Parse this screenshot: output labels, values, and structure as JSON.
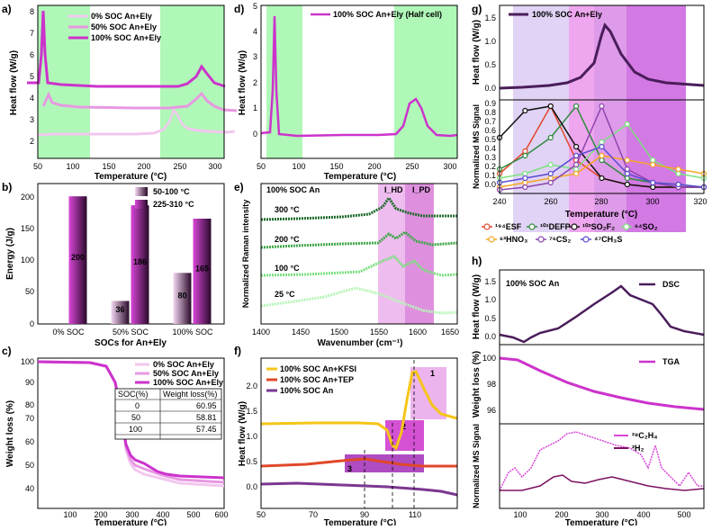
{
  "colors": {
    "green": "#6cf27a",
    "pink100": "#cc33cc",
    "pink50": "#e799e2",
    "pink0": "#f2c7ef",
    "dkgreen": "#1e6b2a",
    "orange": "#f5a623",
    "red": "#e0482a",
    "black": "#111111",
    "purple": "#6d2a8a",
    "magenta": "#d846d8"
  },
  "chart_data": [
    {
      "id": "a",
      "panel_label": "a)",
      "type": "line",
      "xlabel": "Temperature (°C)",
      "ylabel": "Heat flow (W/g)",
      "xlim": [
        50,
        310
      ],
      "ylim": [
        1.5,
        8.5
      ],
      "xticks": [
        "50",
        "100",
        "150",
        "200",
        "250",
        "300"
      ],
      "yticks": [
        "2",
        "3",
        "4",
        "5",
        "6",
        "7",
        "8"
      ],
      "shaded": [
        [
          50,
          100
        ],
        [
          225,
          310
        ]
      ],
      "series": [
        {
          "name": "0% SOC An+Ely"
        },
        {
          "name": "50% SOC An+Ely"
        },
        {
          "name": "100% SOC An+Ely"
        }
      ]
    },
    {
      "id": "b",
      "panel_label": "b)",
      "type": "bar",
      "xlabel": "SOCs for An+Ely",
      "ylabel": "Energy (J/g)",
      "categories": [
        "0% SOC",
        "50% SOC",
        "100% SOC"
      ],
      "ylim": [
        0,
        220
      ],
      "yticks": [
        "0",
        "50",
        "100",
        "150",
        "200"
      ],
      "series": [
        {
          "name": "50-100 °C",
          "values": [
            0,
            36,
            80
          ]
        },
        {
          "name": "225-310 °C",
          "values": [
            200,
            186,
            165
          ]
        }
      ],
      "value_labels": [
        "200",
        "36",
        "186",
        "80",
        "165"
      ]
    },
    {
      "id": "c",
      "panel_label": "c)",
      "type": "line",
      "xlabel": "Temperature (°C)",
      "ylabel": "Weight loss (%)",
      "xlim": [
        30,
        600
      ],
      "ylim": [
        36,
        101
      ],
      "xticks": [
        "100",
        "200",
        "300",
        "400",
        "500",
        "600"
      ],
      "yticks": [
        "40",
        "50",
        "60",
        "70",
        "80",
        "90",
        "100"
      ],
      "series": [
        {
          "name": "0% SOC An+Ely"
        },
        {
          "name": "50% SOC An+Ely"
        },
        {
          "name": "100% SOC An+Ely"
        }
      ],
      "table": {
        "headers": [
          "SOC(%)",
          "Weight loss(%)"
        ],
        "rows": [
          [
            "0",
            "60.95"
          ],
          [
            "50",
            "58.81"
          ],
          [
            "100",
            "57.45"
          ]
        ]
      }
    },
    {
      "id": "d",
      "panel_label": "d)",
      "type": "line",
      "xlabel": "Temperature (°C)",
      "ylabel": "Heat flow (W/g)",
      "xlim": [
        50,
        310
      ],
      "ylim": [
        -0.8,
        5.2
      ],
      "xticks": [
        "50",
        "100",
        "150",
        "200",
        "250",
        "300"
      ],
      "yticks": [
        "0",
        "1",
        "2",
        "3",
        "4",
        "5"
      ],
      "shaded": [
        [
          60,
          100
        ],
        [
          230,
          310
        ]
      ],
      "series": [
        {
          "name": "100% SOC An+Ely (Half cell)"
        }
      ]
    },
    {
      "id": "e",
      "panel_label": "e)",
      "type": "line",
      "title": "100% SOC An",
      "xlabel": "Wavenumber (cm⁻¹)",
      "ylabel": "Normalized Raman intensity",
      "xlim": [
        1400,
        1650
      ],
      "xticks": [
        "1400",
        "1450",
        "1500",
        "1550",
        "1600",
        "1650"
      ],
      "bands": [
        {
          "label": "I_HD",
          "range": [
            1555,
            1585
          ]
        },
        {
          "label": "I_PD",
          "range": [
            1585,
            1618
          ]
        }
      ],
      "series": [
        {
          "name": "300 °C"
        },
        {
          "name": "200 °C"
        },
        {
          "name": "100 °C"
        },
        {
          "name": "25 °C"
        }
      ]
    },
    {
      "id": "f",
      "panel_label": "f)",
      "type": "line",
      "xlabel": "Temperature (°C)",
      "ylabel": "Heat flow (W/g)",
      "xlim": [
        50,
        125
      ],
      "ylim": [
        -0.3,
        2.6
      ],
      "xticks": [
        "50",
        "70",
        "90",
        "110"
      ],
      "yticks": [
        "0.0",
        "0.5",
        "1.0",
        "1.5",
        "2.0"
      ],
      "series": [
        {
          "name": "100% SOC An+KFSI"
        },
        {
          "name": "100% SOC An+TEP"
        },
        {
          "name": "100% SOC An"
        }
      ],
      "annotations": [
        "1",
        "2",
        "3"
      ]
    },
    {
      "id": "g",
      "panel_label": "g)",
      "type": "line",
      "xlabel": "Temperature (°C)",
      "ylabel_top": "Heat flow (W/g)",
      "ylabel_bottom": "Normalized MS Signal",
      "xlim": [
        240,
        320
      ],
      "xticks": [
        "240",
        "260",
        "280",
        "300",
        "320"
      ],
      "yticks_top": [
        "0.0",
        "0.5",
        "1.0",
        "1.5"
      ],
      "yticks_bottom": [
        "0.0",
        "0.1",
        "0.2",
        "0.3",
        "0.4",
        "0.5",
        "0.6",
        "0.7",
        "0.8",
        "0.9"
      ],
      "series": [
        {
          "name": "100% SOC An+Ely"
        }
      ],
      "ms_legend": [
        "¹⁹⁴ESF",
        "¹⁰¹DEFP",
        "¹⁰²SO₂F₂",
        "⁶⁴SO₂",
        "⁶³HNO₃",
        "⁷⁶CS₂",
        "⁴⁷CH₃S"
      ],
      "ms_series": [
        {
          "name": "194ESF",
          "x": [
            240,
            250,
            260,
            270,
            280,
            290,
            300,
            310,
            320
          ],
          "y": [
            0.2,
            0.45,
            0.95,
            0.35,
            0.15,
            0.08,
            0.05,
            0.05,
            0.05
          ]
        },
        {
          "name": "101DEFP",
          "x": [
            240,
            250,
            260,
            270,
            280,
            290,
            300,
            310,
            320
          ],
          "y": [
            0.25,
            0.4,
            0.6,
            0.95,
            0.35,
            0.15,
            0.1,
            0.08,
            0.05
          ]
        },
        {
          "name": "102SO2F2",
          "x": [
            240,
            250,
            260,
            270,
            280,
            290,
            300,
            310,
            320
          ],
          "y": [
            0.6,
            0.9,
            0.95,
            0.5,
            0.15,
            0.08,
            0.05,
            0.05,
            0.05
          ]
        },
        {
          "name": "64SO2",
          "x": [
            240,
            250,
            260,
            270,
            280,
            290,
            300,
            310,
            320
          ],
          "y": [
            0.15,
            0.2,
            0.3,
            0.25,
            0.55,
            0.75,
            0.35,
            0.2,
            0.15
          ]
        },
        {
          "name": "63HNO3",
          "x": [
            240,
            250,
            260,
            270,
            280,
            290,
            300,
            310,
            320
          ],
          "y": [
            0.05,
            0.1,
            0.15,
            0.2,
            0.4,
            0.35,
            0.3,
            0.25,
            0.2
          ]
        },
        {
          "name": "76CS2",
          "x": [
            240,
            250,
            260,
            270,
            280,
            290,
            300,
            310,
            320
          ],
          "y": [
            0.02,
            0.05,
            0.1,
            0.3,
            0.95,
            0.25,
            0.1,
            0.05,
            0.05
          ]
        },
        {
          "name": "47CH3S",
          "x": [
            240,
            250,
            260,
            270,
            280,
            290,
            300,
            310,
            320
          ],
          "y": [
            0.1,
            0.15,
            0.2,
            0.4,
            0.5,
            0.2,
            0.1,
            0.08,
            0.05
          ]
        }
      ]
    },
    {
      "id": "h",
      "panel_label": "h)",
      "type": "line",
      "title": "100% SOC An",
      "xlabel": "Temperature (°C)",
      "ylabel_top": "Heat flow (W/g)",
      "ylabel_mid": "Weight loss (%)",
      "ylabel_bottom": "Normalized MS Signal",
      "xlim": [
        50,
        550
      ],
      "xticks": [
        "100",
        "200",
        "300",
        "400",
        "500"
      ],
      "yticks_top": [
        "0.0",
        "0.5",
        "1.0",
        "1.5"
      ],
      "yticks_mid": [
        "96",
        "98",
        "100"
      ],
      "series": [
        {
          "name": "DSC"
        },
        {
          "name": "TGA"
        },
        {
          "name": "²⁸C₂H₄"
        },
        {
          "name": "²H₂"
        }
      ]
    }
  ]
}
